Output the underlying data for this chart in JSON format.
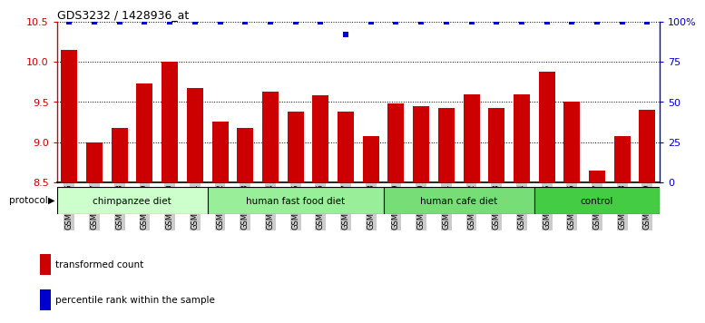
{
  "title": "GDS3232 / 1428936_at",
  "samples": [
    "GSM144526",
    "GSM144527",
    "GSM144528",
    "GSM144529",
    "GSM144530",
    "GSM144531",
    "GSM144532",
    "GSM144533",
    "GSM144534",
    "GSM144535",
    "GSM144536",
    "GSM144537",
    "GSM144538",
    "GSM144539",
    "GSM144540",
    "GSM144541",
    "GSM144542",
    "GSM144543",
    "GSM144544",
    "GSM144545",
    "GSM144546",
    "GSM144547",
    "GSM144548",
    "GSM144549"
  ],
  "bar_values": [
    10.15,
    9.0,
    9.18,
    9.73,
    10.0,
    9.67,
    9.25,
    9.18,
    9.63,
    9.38,
    9.58,
    9.38,
    9.08,
    9.48,
    9.45,
    9.42,
    9.6,
    9.43,
    9.6,
    9.88,
    9.5,
    8.65,
    9.08,
    9.4
  ],
  "percentile_values": [
    100,
    100,
    100,
    100,
    100,
    100,
    100,
    100,
    100,
    100,
    100,
    92,
    100,
    100,
    100,
    100,
    100,
    100,
    100,
    100,
    100,
    100,
    100,
    100
  ],
  "bar_color": "#cc0000",
  "percentile_color": "#0000cc",
  "ylim": [
    8.5,
    10.5
  ],
  "yticks": [
    8.5,
    9.0,
    9.5,
    10.0,
    10.5
  ],
  "right_yticks": [
    0,
    25,
    50,
    75,
    100
  ],
  "right_ylim": [
    0,
    100
  ],
  "groups": [
    {
      "label": "chimpanzee diet",
      "start": 0,
      "end": 6,
      "color": "#ccffcc"
    },
    {
      "label": "human fast food diet",
      "start": 6,
      "end": 13,
      "color": "#99ee99"
    },
    {
      "label": "human cafe diet",
      "start": 13,
      "end": 19,
      "color": "#77dd77"
    },
    {
      "label": "control",
      "start": 19,
      "end": 24,
      "color": "#44cc44"
    }
  ],
  "legend_items": [
    {
      "label": "transformed count",
      "color": "#cc0000"
    },
    {
      "label": "percentile rank within the sample",
      "color": "#0000cc"
    }
  ],
  "protocol_label": "protocol",
  "background_color": "#ffffff",
  "tick_bg_color": "#cccccc"
}
